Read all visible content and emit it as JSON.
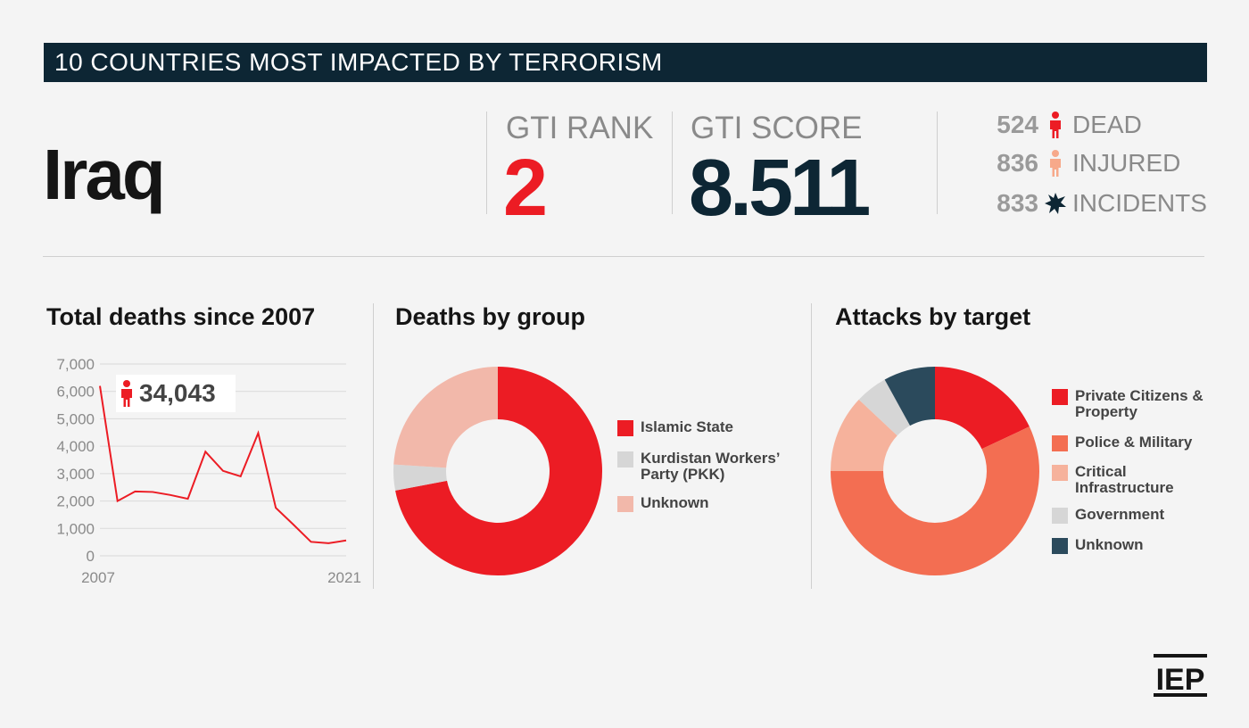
{
  "header": {
    "banner_title": "10 COUNTRIES MOST IMPACTED BY TERRORISM"
  },
  "country": "Iraq",
  "stats": {
    "rank_label": "GTI RANK",
    "rank_value": "2",
    "score_label": "GTI SCORE",
    "score_value": "8.511"
  },
  "kpis": [
    {
      "value": "524",
      "label": "DEAD",
      "icon": "person-icon",
      "color": "#ec1c24"
    },
    {
      "value": "836",
      "label": "INJURED",
      "icon": "person-icon",
      "color": "#f7a98a"
    },
    {
      "value": "833",
      "label": "INCIDENTS",
      "icon": "explosion-icon",
      "color": "#0d2634"
    }
  ],
  "logo_text": "IEP",
  "chart_data": [
    {
      "type": "line",
      "title": "Total deaths since 2007",
      "x": [
        2007,
        2008,
        2009,
        2010,
        2011,
        2012,
        2013,
        2014,
        2015,
        2016,
        2017,
        2018,
        2019,
        2020,
        2021
      ],
      "series": [
        {
          "values": [
            6200,
            2000,
            2350,
            2330,
            2220,
            2080,
            3800,
            3100,
            2900,
            4480,
            1750,
            1140,
            510,
            460,
            560
          ],
          "color": "#ec1c24"
        }
      ],
      "ylim": [
        0,
        7000
      ],
      "yticks": [
        "7,000",
        "6,000",
        "5,000",
        "4,000",
        "3,000",
        "2,000",
        "1,000",
        "0"
      ],
      "xtick_labels": [
        "2007",
        "2021"
      ],
      "grid": true,
      "callout": {
        "value": "34,043",
        "icon": "person-icon"
      }
    },
    {
      "type": "pie",
      "donut": true,
      "title": "Deaths by group",
      "slices": [
        {
          "label": "Islamic State",
          "value": 72,
          "color": "#ec1c24"
        },
        {
          "label": "Kurdistan Workers’ Party (PKK)",
          "value": 4,
          "color": "#d6d6d6"
        },
        {
          "label": "Unknown",
          "value": 24,
          "color": "#f2b8aa"
        }
      ]
    },
    {
      "type": "pie",
      "donut": true,
      "title": "Attacks by target",
      "slices": [
        {
          "label": "Private Citizens & Property",
          "value": 18,
          "color": "#ec1c24"
        },
        {
          "label": "Police & Military",
          "value": 57,
          "color": "#f36e52"
        },
        {
          "label": "Critical Infrastructure",
          "value": 12,
          "color": "#f6b29c"
        },
        {
          "label": "Government",
          "value": 5,
          "color": "#d6d6d6"
        },
        {
          "label": "Unknown",
          "value": 8,
          "color": "#2b4a5c"
        }
      ]
    }
  ]
}
